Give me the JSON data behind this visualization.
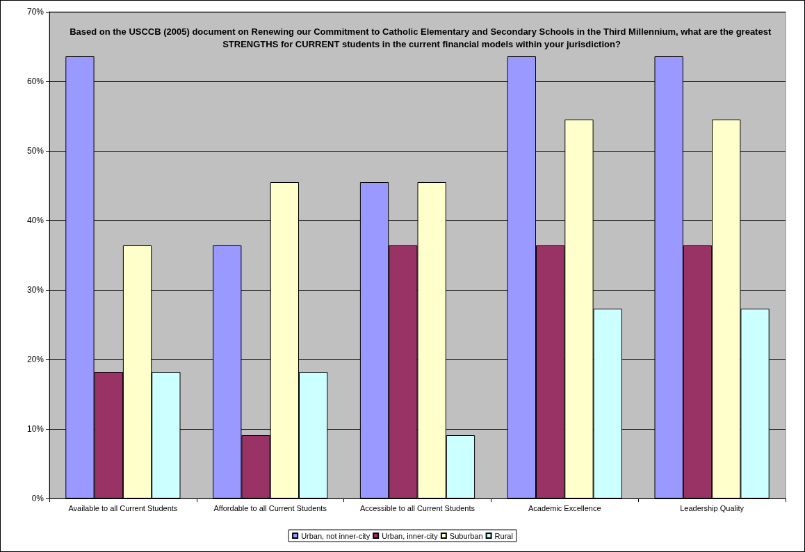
{
  "chart_data": {
    "type": "bar",
    "title": "Based on the USCCB (2005) document on Renewing our Commitment to Catholic Elementary and Secondary Schools in the Third Millennium, what are the greatest STRENGTHS for CURRENT students in the current financial models within your jurisdiction?",
    "categories": [
      "Available to all Current Students",
      "Affordable to all Current Students",
      "Accessible to all Current Students",
      "Academic Excellence",
      "Leadership Quality"
    ],
    "series": [
      {
        "name": "Urban, not inner-city",
        "color": "#9999ff",
        "values": [
          63.6,
          36.4,
          45.5,
          63.6,
          63.6
        ]
      },
      {
        "name": "Urban, inner-city",
        "color": "#993366",
        "values": [
          18.2,
          9.1,
          36.4,
          36.4,
          36.4
        ]
      },
      {
        "name": "Suburban",
        "color": "#ffffcc",
        "values": [
          36.4,
          45.5,
          45.5,
          54.5,
          54.5
        ]
      },
      {
        "name": "Rural",
        "color": "#ccffff",
        "values": [
          18.2,
          18.2,
          9.1,
          27.3,
          27.3
        ]
      }
    ],
    "ylim": [
      0,
      70
    ],
    "yticks": [
      {
        "value": 0,
        "label": "0%"
      },
      {
        "value": 10,
        "label": "10%"
      },
      {
        "value": 20,
        "label": "20%"
      },
      {
        "value": 30,
        "label": "30%"
      },
      {
        "value": 40,
        "label": "40%"
      },
      {
        "value": 50,
        "label": "50%"
      },
      {
        "value": 60,
        "label": "60%"
      },
      {
        "value": 70,
        "label": "70%"
      }
    ],
    "grid": "y",
    "legend": "bottom"
  }
}
